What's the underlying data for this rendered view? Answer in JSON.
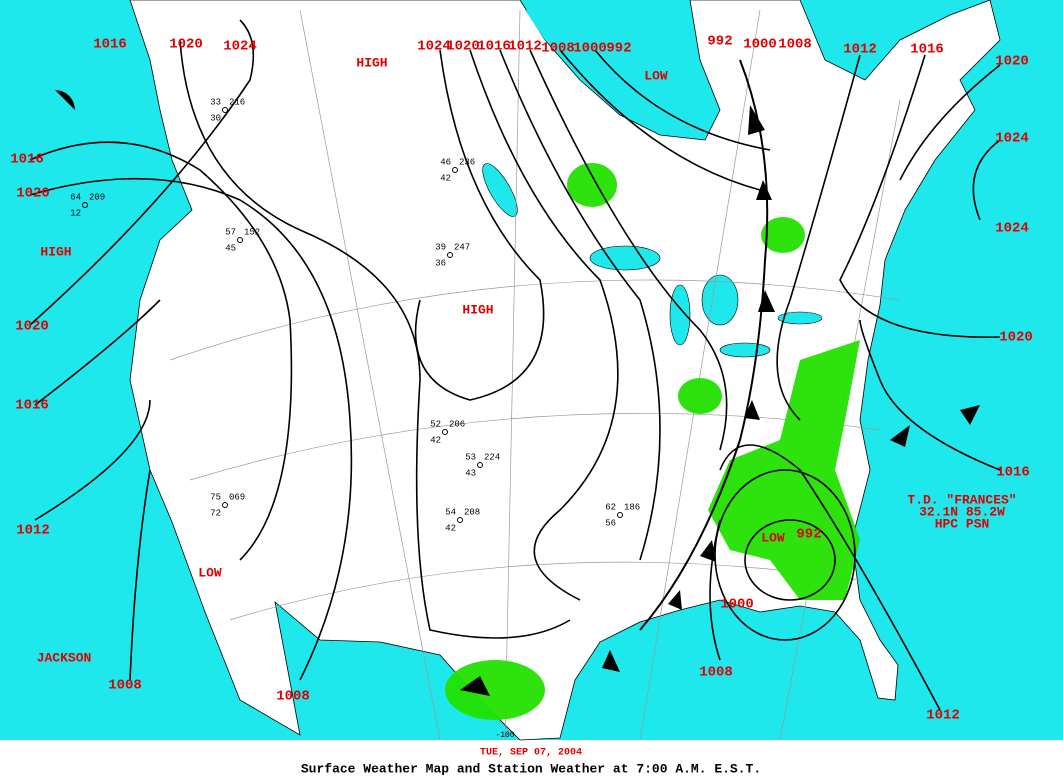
{
  "pressure_labels": [
    "1016",
    "1020",
    "1024",
    "1024",
    "1020",
    "1016",
    "1012",
    "1008",
    "1000",
    "992",
    "992",
    "1000",
    "1008",
    "1012",
    "1016",
    "1020",
    "1024",
    "1024",
    "1016",
    "1020",
    "1020",
    "1016",
    "1012",
    "1008",
    "1008",
    "1020",
    "1016",
    "1012",
    "1008",
    "1000",
    "992"
  ],
  "systems": [
    "HIGH",
    "HIGH",
    "HIGH",
    "LOW",
    "LOW",
    "LOW"
  ],
  "place": "JACKSON",
  "storm": {
    "name": "T.D. \"FRANCES\"",
    "position": "32.1N 85.2W",
    "source": "HPC PSN"
  },
  "longitude_label": "-100",
  "stations": [
    {
      "temp": "33",
      "pressure": "216",
      "dew": "30"
    },
    {
      "temp": "46",
      "pressure": "236",
      "dew": "42"
    },
    {
      "temp": "39",
      "pressure": "247",
      "dew": "36"
    },
    {
      "temp": "57",
      "pressure": "152",
      "dew": "45"
    },
    {
      "temp": "52",
      "pressure": "206",
      "dew": "42"
    },
    {
      "temp": "54",
      "pressure": "208",
      "dew": "42"
    },
    {
      "temp": "75",
      "pressure": "069",
      "dew": "72"
    },
    {
      "temp": "62",
      "pressure": "186",
      "dew": "56"
    },
    {
      "temp": "53",
      "pressure": "224",
      "dew": "43"
    },
    {
      "temp": "64",
      "pressure": "209",
      "dew": "12"
    }
  ],
  "footer": {
    "date": "TUE, SEP 07, 2004",
    "title": "Surface Weather Map and Station Weather at 7:00 A.M. E.S.T."
  }
}
